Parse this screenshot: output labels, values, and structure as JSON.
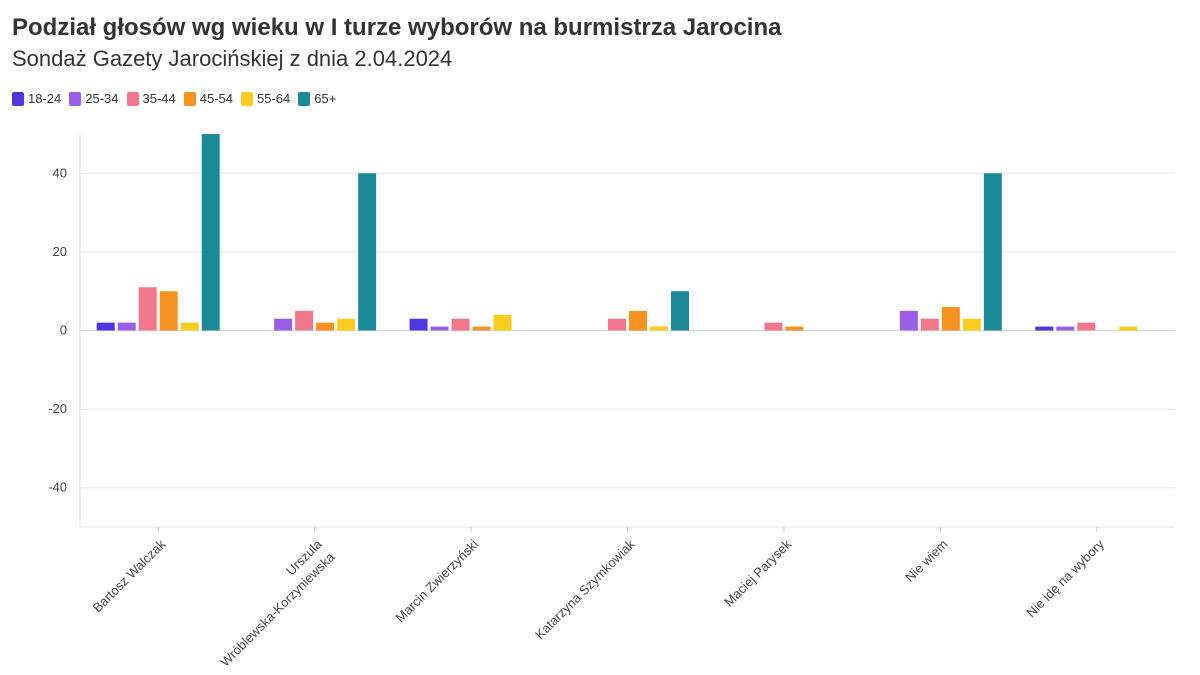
{
  "header": {
    "title": "Podział głosów wg wieku w I turze wyborów na burmistrza Jarocina",
    "subtitle": "Sondaż Gazety Jarocińskiej z dnia 2.04.2024"
  },
  "chart_data": {
    "type": "bar",
    "title": "Podział głosów wg wieku w I turze wyborów na burmistrza Jarocina",
    "subtitle": "Sondaż Gazety Jarocińskiej z dnia 2.04.2024",
    "xlabel": "",
    "ylabel": "",
    "ylim": [
      -50,
      50
    ],
    "yticks": [
      -40,
      -20,
      0,
      20,
      40
    ],
    "grid": true,
    "legend_position": "top-left",
    "categories": [
      [
        "Bartosz Walczak"
      ],
      [
        "Urszula",
        "Wróblewska-Korzyniewska"
      ],
      [
        "Marcin Zwierzyński"
      ],
      [
        "Katarzyna Szymkowiak"
      ],
      [
        "Maciej Parysek"
      ],
      [
        "Nie wiem"
      ],
      [
        "Nie idę na wybory"
      ]
    ],
    "series": [
      {
        "name": "18-24",
        "color": "#4f37e0",
        "values": [
          2,
          0,
          3,
          0,
          0,
          0,
          1
        ]
      },
      {
        "name": "25-34",
        "color": "#9b5ee8",
        "values": [
          2,
          3,
          1,
          0,
          0,
          5,
          1
        ]
      },
      {
        "name": "35-44",
        "color": "#f3778c",
        "values": [
          11,
          5,
          3,
          3,
          2,
          3,
          2
        ]
      },
      {
        "name": "45-54",
        "color": "#f59220",
        "values": [
          10,
          2,
          1,
          5,
          1,
          6,
          0
        ]
      },
      {
        "name": "55-64",
        "color": "#f9cc1f",
        "values": [
          2,
          3,
          4,
          1,
          0,
          3,
          1
        ]
      },
      {
        "name": "65+",
        "color": "#1c8a98",
        "values": [
          50,
          40,
          0,
          10,
          0,
          40,
          0
        ]
      }
    ]
  }
}
